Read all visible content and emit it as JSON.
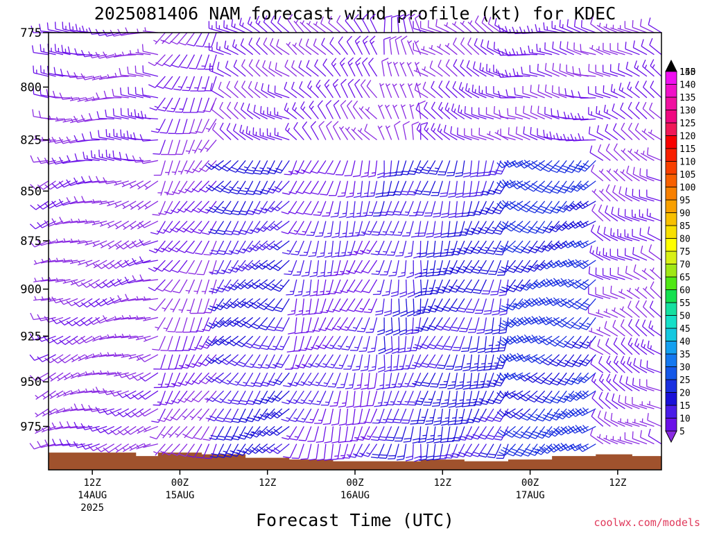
{
  "chart_data": {
    "type": "wind_barb_profile",
    "title": "2025081406 NAM forecast wind profile (kt) for KDEC",
    "xlabel": "Forecast Time (UTC)",
    "credit": "coolwx.com/models",
    "y_axis": {
      "label": "",
      "ticks": [
        775,
        800,
        825,
        850,
        875,
        900,
        925,
        950,
        975
      ],
      "range": [
        775,
        1000
      ],
      "inverted": true
    },
    "x_axis": {
      "range_hours": [
        0,
        84
      ],
      "ticks": [
        {
          "hour": 6,
          "label": "12Z",
          "date": "14AUG",
          "year": "2025"
        },
        {
          "hour": 18,
          "label": "00Z",
          "date": "15AUG",
          "year": ""
        },
        {
          "hour": 30,
          "label": "12Z",
          "date": "",
          "year": ""
        },
        {
          "hour": 42,
          "label": "00Z",
          "date": "16AUG",
          "year": ""
        },
        {
          "hour": 54,
          "label": "12Z",
          "date": "",
          "year": ""
        },
        {
          "hour": 66,
          "label": "00Z",
          "date": "17AUG",
          "year": ""
        },
        {
          "hour": 78,
          "label": "12Z",
          "date": "",
          "year": ""
        }
      ]
    },
    "pressure_levels": [
      775,
      785,
      795,
      805,
      815,
      825,
      835,
      845,
      855,
      865,
      875,
      885,
      895,
      905,
      915,
      925,
      935,
      945,
      955,
      965,
      975,
      985
    ],
    "time_steps": {
      "start": 0,
      "end": 84,
      "step": 1
    },
    "terrain": {
      "color": "#a0522d",
      "surface_pressure": [
        {
          "hour": 0,
          "p": 990
        },
        {
          "hour": 12,
          "p": 992
        },
        {
          "hour": 15,
          "p": 990
        },
        {
          "hour": 21,
          "p": 991
        },
        {
          "hour": 27,
          "p": 993
        },
        {
          "hour": 33,
          "p": 994
        },
        {
          "hour": 39,
          "p": 995
        },
        {
          "hour": 45,
          "p": 995
        },
        {
          "hour": 51,
          "p": 994
        },
        {
          "hour": 57,
          "p": 995
        },
        {
          "hour": 63,
          "p": 994
        },
        {
          "hour": 69,
          "p": 992
        },
        {
          "hour": 75,
          "p": 991
        },
        {
          "hour": 80,
          "p": 992
        },
        {
          "hour": 84,
          "p": 992
        }
      ]
    },
    "wind_regimes": [
      {
        "t0": 0,
        "t1": 16,
        "p0": 775,
        "p1": 840,
        "dir": 270,
        "spd": 10
      },
      {
        "t0": 0,
        "t1": 16,
        "p0": 840,
        "p1": 1000,
        "dir": 250,
        "spd": 8
      },
      {
        "t0": 16,
        "t1": 24,
        "p0": 775,
        "p1": 1000,
        "dir": 210,
        "spd": 10
      },
      {
        "t0": 24,
        "t1": 34,
        "p0": 775,
        "p1": 830,
        "dir": 300,
        "spd": 12
      },
      {
        "t0": 24,
        "t1": 34,
        "p0": 830,
        "p1": 1000,
        "dir": 220,
        "spd": 20
      },
      {
        "t0": 34,
        "t1": 46,
        "p0": 775,
        "p1": 830,
        "dir": 320,
        "spd": 10
      },
      {
        "t0": 34,
        "t1": 46,
        "p0": 830,
        "p1": 1000,
        "dir": 200,
        "spd": 14
      },
      {
        "t0": 46,
        "t1": 52,
        "p0": 775,
        "p1": 830,
        "dir": 350,
        "spd": 8
      },
      {
        "t0": 46,
        "t1": 52,
        "p0": 830,
        "p1": 1000,
        "dir": 190,
        "spd": 18
      },
      {
        "t0": 52,
        "t1": 64,
        "p0": 775,
        "p1": 830,
        "dir": 300,
        "spd": 10
      },
      {
        "t0": 52,
        "t1": 64,
        "p0": 830,
        "p1": 1000,
        "dir": 200,
        "spd": 22
      },
      {
        "t0": 64,
        "t1": 76,
        "p0": 775,
        "p1": 830,
        "dir": 280,
        "spd": 12
      },
      {
        "t0": 64,
        "t1": 76,
        "p0": 830,
        "p1": 1000,
        "dir": 230,
        "spd": 27
      },
      {
        "t0": 76,
        "t1": 84,
        "p0": 775,
        "p1": 1000,
        "dir": 300,
        "spd": 10
      }
    ],
    "colorbar": {
      "values": [
        5,
        10,
        15,
        20,
        25,
        30,
        35,
        40,
        45,
        50,
        55,
        60,
        65,
        70,
        75,
        80,
        85,
        90,
        95,
        100,
        105,
        110,
        115,
        120,
        125,
        130,
        135,
        140,
        145,
        150
      ],
      "colors": [
        "#8a2be2",
        "#6a10e8",
        "#4a1ce8",
        "#1a10d8",
        "#1a30e0",
        "#1458e8",
        "#1478f0",
        "#14a0f0",
        "#14c8e0",
        "#14e0c8",
        "#14e0a0",
        "#14e050",
        "#50e814",
        "#a0e814",
        "#d8f014",
        "#ffff00",
        "#f8e000",
        "#f8c000",
        "#f8a000",
        "#f88000",
        "#f86000",
        "#f84000",
        "#f82000",
        "#f80000",
        "#f01858",
        "#f00880",
        "#f010a0",
        "#f010c8",
        "#f010f0",
        "#000000"
      ]
    },
    "barb_color_scale": [
      {
        "spd": 5,
        "color": "#8a2be2"
      },
      {
        "spd": 10,
        "color": "#6a10e8"
      },
      {
        "spd": 15,
        "color": "#4a1ce8"
      },
      {
        "spd": 20,
        "color": "#1a10d8"
      },
      {
        "spd": 25,
        "color": "#1a30e0"
      },
      {
        "spd": 30,
        "color": "#1458e8"
      }
    ]
  }
}
